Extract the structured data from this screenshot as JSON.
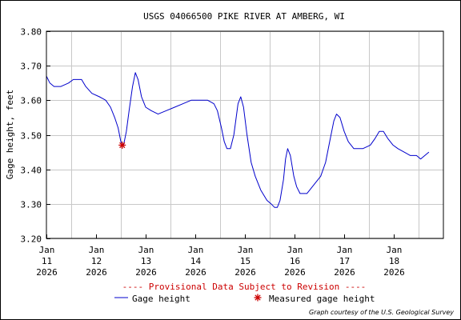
{
  "chart_data": {
    "type": "line",
    "title": "USGS 04066500 PIKE RIVER AT AMBERG, WI",
    "ylabel": "Gage height, feet",
    "xlabel": "",
    "ylim": [
      3.2,
      3.8
    ],
    "xlim": [
      "2026-01-10T12:00",
      "2026-01-18T12:00"
    ],
    "yticks": [
      "3.20",
      "3.30",
      "3.40",
      "3.50",
      "3.60",
      "3.70",
      "3.80"
    ],
    "xticks": [
      {
        "month": "Jan",
        "day": "11",
        "year": "2026",
        "x": "2026-01-11T00:00"
      },
      {
        "month": "Jan",
        "day": "12",
        "year": "2026",
        "x": "2026-01-12T00:00"
      },
      {
        "month": "Jan",
        "day": "13",
        "year": "2026",
        "x": "2026-01-13T00:00"
      },
      {
        "month": "Jan",
        "day": "14",
        "year": "2026",
        "x": "2026-01-14T00:00"
      },
      {
        "month": "Jan",
        "day": "15",
        "year": "2026",
        "x": "2026-01-15T00:00"
      },
      {
        "month": "Jan",
        "day": "16",
        "year": "2026",
        "x": "2026-01-16T00:00"
      },
      {
        "month": "Jan",
        "day": "17",
        "year": "2026",
        "x": "2026-01-17T00:00"
      },
      {
        "month": "Jan",
        "day": "18",
        "year": "2026",
        "x": "2026-01-18T00:00"
      }
    ],
    "grid": true,
    "series": [
      {
        "name": "Gage height",
        "color": "#0000cc",
        "points": [
          [
            "2026-01-10T12:00",
            3.67
          ],
          [
            "2026-01-10T13:40",
            3.65
          ],
          [
            "2026-01-10T15:40",
            3.64
          ],
          [
            "2026-01-10T19:00",
            3.64
          ],
          [
            "2026-01-10T22:40",
            3.65
          ],
          [
            "2026-01-11T01:00",
            3.66
          ],
          [
            "2026-01-11T05:00",
            3.66
          ],
          [
            "2026-01-11T07:00",
            3.64
          ],
          [
            "2026-01-11T10:00",
            3.62
          ],
          [
            "2026-01-11T13:40",
            3.61
          ],
          [
            "2026-01-11T16:40",
            3.6
          ],
          [
            "2026-01-11T19:00",
            3.58
          ],
          [
            "2026-01-11T21:00",
            3.55
          ],
          [
            "2026-01-11T22:40",
            3.52
          ],
          [
            "2026-01-12T00:00",
            3.48
          ],
          [
            "2026-01-12T01:20",
            3.47
          ],
          [
            "2026-01-12T02:40",
            3.51
          ],
          [
            "2026-01-12T04:00",
            3.57
          ],
          [
            "2026-01-12T05:40",
            3.64
          ],
          [
            "2026-01-12T07:00",
            3.68
          ],
          [
            "2026-01-12T08:20",
            3.66
          ],
          [
            "2026-01-12T10:00",
            3.61
          ],
          [
            "2026-01-12T12:00",
            3.58
          ],
          [
            "2026-01-12T14:40",
            3.57
          ],
          [
            "2026-01-12T18:00",
            3.56
          ],
          [
            "2026-01-12T22:00",
            3.57
          ],
          [
            "2026-01-13T02:00",
            3.58
          ],
          [
            "2026-01-13T06:00",
            3.59
          ],
          [
            "2026-01-13T10:00",
            3.6
          ],
          [
            "2026-01-13T14:00",
            3.6
          ],
          [
            "2026-01-13T18:00",
            3.6
          ],
          [
            "2026-01-13T21:00",
            3.59
          ],
          [
            "2026-01-13T22:40",
            3.57
          ],
          [
            "2026-01-14T00:40",
            3.52
          ],
          [
            "2026-01-14T02:00",
            3.48
          ],
          [
            "2026-01-14T03:20",
            3.46
          ],
          [
            "2026-01-14T05:00",
            3.46
          ],
          [
            "2026-01-14T06:40",
            3.5
          ],
          [
            "2026-01-14T08:40",
            3.59
          ],
          [
            "2026-01-14T10:00",
            3.61
          ],
          [
            "2026-01-14T11:20",
            3.58
          ],
          [
            "2026-01-14T13:00",
            3.5
          ],
          [
            "2026-01-14T15:00",
            3.42
          ],
          [
            "2026-01-14T17:00",
            3.38
          ],
          [
            "2026-01-14T19:40",
            3.34
          ],
          [
            "2026-01-14T22:40",
            3.31
          ],
          [
            "2026-01-15T00:40",
            3.3
          ],
          [
            "2026-01-15T02:20",
            3.29
          ],
          [
            "2026-01-15T03:40",
            3.29
          ],
          [
            "2026-01-15T05:00",
            3.31
          ],
          [
            "2026-01-15T06:40",
            3.37
          ],
          [
            "2026-01-15T07:40",
            3.43
          ],
          [
            "2026-01-15T08:40",
            3.46
          ],
          [
            "2026-01-15T10:00",
            3.44
          ],
          [
            "2026-01-15T11:40",
            3.38
          ],
          [
            "2026-01-15T13:00",
            3.35
          ],
          [
            "2026-01-15T14:40",
            3.33
          ],
          [
            "2026-01-15T18:00",
            3.33
          ],
          [
            "2026-01-15T22:00",
            3.36
          ],
          [
            "2026-01-16T00:40",
            3.38
          ],
          [
            "2026-01-16T03:00",
            3.42
          ],
          [
            "2026-01-16T05:00",
            3.48
          ],
          [
            "2026-01-16T07:00",
            3.54
          ],
          [
            "2026-01-16T08:20",
            3.56
          ],
          [
            "2026-01-16T10:00",
            3.55
          ],
          [
            "2026-01-16T12:00",
            3.51
          ],
          [
            "2026-01-16T14:00",
            3.48
          ],
          [
            "2026-01-16T16:40",
            3.46
          ],
          [
            "2026-01-16T21:00",
            3.46
          ],
          [
            "2026-01-17T00:40",
            3.47
          ],
          [
            "2026-01-17T03:00",
            3.49
          ],
          [
            "2026-01-17T05:00",
            3.51
          ],
          [
            "2026-01-17T07:00",
            3.51
          ],
          [
            "2026-01-17T09:00",
            3.49
          ],
          [
            "2026-01-17T11:40",
            3.47
          ],
          [
            "2026-01-17T14:00",
            3.46
          ],
          [
            "2026-01-17T17:00",
            3.45
          ],
          [
            "2026-01-17T20:00",
            3.44
          ],
          [
            "2026-01-17T23:00",
            3.44
          ],
          [
            "2026-01-18T01:00",
            3.43
          ],
          [
            "2026-01-18T03:00",
            3.44
          ],
          [
            "2026-01-18T05:00",
            3.45
          ]
        ]
      },
      {
        "name": "Measured gage height",
        "color": "#cc0000",
        "marker": "asterisk",
        "points": [
          [
            "2026-01-12T00:40",
            3.47
          ]
        ]
      }
    ]
  },
  "notice": "---- Provisional Data Subject to Revision ----",
  "legend": [
    {
      "label": "Gage height",
      "color": "#0000cc",
      "symbol": "line"
    },
    {
      "label": "Measured gage height",
      "color": "#cc0000",
      "symbol": "asterisk"
    }
  ],
  "credit": "Graph courtesy of the U.S. Geological Survey",
  "colors": {
    "grid": "#c8c8c8",
    "notice": "#cc0000",
    "axis": "#000000"
  }
}
